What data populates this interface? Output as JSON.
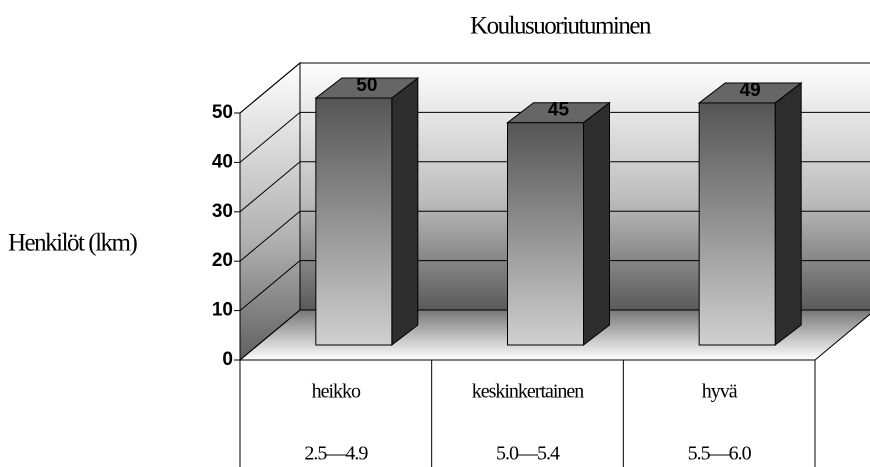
{
  "chart_data": {
    "type": "bar3d",
    "title": "Koulusuoriutuminen",
    "y_label": "Henkilöt (lkm)",
    "categories": [
      "heikko",
      "keskinkertainen",
      "hyvä"
    ],
    "category_ranges": [
      "2.5—4.9",
      "5.0—5.4",
      "5.5—6.0"
    ],
    "values": [
      50,
      45,
      49
    ],
    "color": "#666666",
    "ylim": [
      0,
      50
    ],
    "yticks": [
      0,
      10,
      20,
      30,
      40,
      50
    ],
    "grid": true
  }
}
